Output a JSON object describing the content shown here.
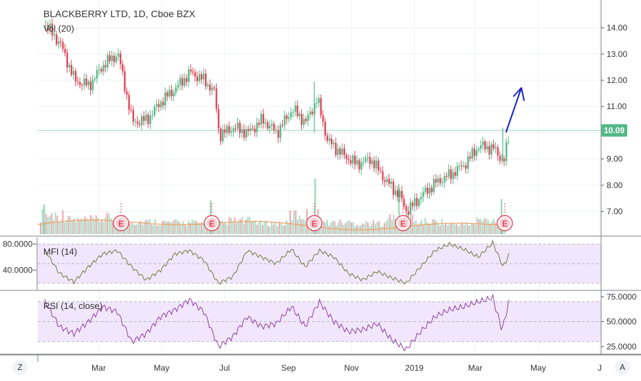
{
  "header": {
    "symbol_title": "BLACKBERRY LTD, 1D, Cboe BZX",
    "volume_label": "Vol (20)"
  },
  "price_pane": {
    "y_ticks": [
      "14.00",
      "13.00",
      "12.00",
      "11.00",
      "10.00",
      "9.00",
      "8.00",
      "7.00"
    ],
    "last_price": "10.09",
    "earnings_marker_label": "E"
  },
  "mfi_pane": {
    "label": "MFI (14)",
    "y_ticks": [
      "80.0000",
      "40.0000"
    ]
  },
  "rsi_pane": {
    "label": "RSI (14, close)",
    "y_ticks": [
      "75.0000",
      "50.0000",
      "25.0000"
    ]
  },
  "time_axis": {
    "labels": [
      "Mar",
      "May",
      "Jul",
      "Sep",
      "Nov",
      "2019",
      "Mar",
      "May",
      "J"
    ]
  },
  "toolbar": {
    "left_button": "Z",
    "right_button": "A"
  },
  "colors": {
    "up": "#53b987",
    "down": "#e0465a",
    "arrow": "#1520c8",
    "mfi_line": "#6b7b3a",
    "rsi_line": "#8e3ea0",
    "band_fill": "#f1e6fb",
    "price_line": "#53b987"
  },
  "chart_data": [
    {
      "type": "line",
      "title": "BLACKBERRY LTD, 1D, Cboe BZX",
      "series": [
        {
          "name": "",
          "x": [
            "2018-01-08",
            "2018-01-22",
            "2018-02-05",
            "2018-02-19",
            "2018-03-05",
            "2018-03-19",
            "2018-04-02",
            "2018-04-16",
            "2018-04-30",
            "2018-05-14",
            "2018-05-28",
            "2018-06-11",
            "2018-06-21",
            "2018-06-25",
            "2018-07-09",
            "2018-07-23",
            "2018-08-06",
            "2018-08-20",
            "2018-09-04",
            "2018-09-17",
            "2018-09-28",
            "2018-10-08",
            "2018-10-22",
            "2018-11-05",
            "2018-11-19",
            "2018-12-03",
            "2018-12-17",
            "2018-12-24",
            "2019-01-07",
            "2019-01-21",
            "2019-02-04",
            "2019-02-18",
            "2019-03-04",
            "2019-03-18",
            "2019-03-28",
            "2019-04-03"
          ],
          "values": [
            14.1,
            13.4,
            12.0,
            11.8,
            12.6,
            13.0,
            10.4,
            10.5,
            11.2,
            11.7,
            12.3,
            12.0,
            11.5,
            9.9,
            10.2,
            10.0,
            10.5,
            10.0,
            10.9,
            10.4,
            11.3,
            9.7,
            9.2,
            8.8,
            9.0,
            8.2,
            7.6,
            7.0,
            7.6,
            8.1,
            8.4,
            8.8,
            9.5,
            9.4,
            8.9,
            10.09
          ]
        }
      ],
      "ylim": [
        6.4,
        14.8
      ],
      "y_ticks": [
        7,
        8,
        9,
        10,
        11,
        12,
        13,
        14
      ],
      "annotations": [
        "10.09",
        "E",
        "E",
        "E",
        "E",
        "E"
      ]
    },
    {
      "type": "bar",
      "title": "Vol (20)",
      "x": [
        "2018-01",
        "2018-02",
        "2018-03",
        "2018-04",
        "2018-05",
        "2018-06",
        "2018-07",
        "2018-08",
        "2018-09",
        "2018-10",
        "2018-11",
        "2018-12",
        "2019-01",
        "2019-02",
        "2019-03",
        "2019-04"
      ],
      "values": [
        0.9,
        0.6,
        0.7,
        0.5,
        0.45,
        0.4,
        0.55,
        0.4,
        0.9,
        0.45,
        0.4,
        0.7,
        0.5,
        0.35,
        0.6,
        0.95
      ]
    },
    {
      "type": "line",
      "title": "MFI (14)",
      "series": [
        {
          "name": "MFI (14)",
          "x": [
            "2018-01-08",
            "2018-01-22",
            "2018-02-05",
            "2018-02-19",
            "2018-03-05",
            "2018-03-19",
            "2018-04-02",
            "2018-04-16",
            "2018-04-30",
            "2018-05-14",
            "2018-05-28",
            "2018-06-11",
            "2018-06-25",
            "2018-07-09",
            "2018-07-23",
            "2018-08-06",
            "2018-08-20",
            "2018-09-04",
            "2018-09-17",
            "2018-10-01",
            "2018-10-15",
            "2018-10-29",
            "2018-11-12",
            "2018-11-26",
            "2018-12-10",
            "2018-12-24",
            "2019-01-07",
            "2019-01-21",
            "2019-02-04",
            "2019-02-18",
            "2019-03-04",
            "2019-03-18",
            "2019-03-28",
            "2019-04-03"
          ],
          "values": [
            70,
            35,
            22,
            45,
            65,
            70,
            45,
            25,
            40,
            65,
            70,
            55,
            20,
            30,
            70,
            60,
            50,
            72,
            45,
            70,
            60,
            35,
            25,
            38,
            28,
            20,
            45,
            70,
            80,
            72,
            60,
            82,
            45,
            65
          ]
        }
      ],
      "y_ticks": [
        40,
        80
      ],
      "ylim": [
        10,
        90
      ]
    },
    {
      "type": "line",
      "title": "RSI (14, close)",
      "series": [
        {
          "name": "RSI (14, close)",
          "x": [
            "2018-01-08",
            "2018-01-22",
            "2018-02-05",
            "2018-02-19",
            "2018-03-05",
            "2018-03-19",
            "2018-04-02",
            "2018-04-16",
            "2018-04-30",
            "2018-05-14",
            "2018-05-28",
            "2018-06-11",
            "2018-06-25",
            "2018-07-09",
            "2018-07-23",
            "2018-08-06",
            "2018-08-20",
            "2018-09-04",
            "2018-09-17",
            "2018-10-01",
            "2018-10-15",
            "2018-10-29",
            "2018-11-12",
            "2018-11-26",
            "2018-12-10",
            "2018-12-24",
            "2019-01-07",
            "2019-01-21",
            "2019-02-04",
            "2019-02-18",
            "2019-03-04",
            "2019-03-18",
            "2019-03-26",
            "2019-03-28",
            "2019-04-03"
          ],
          "values": [
            70,
            45,
            38,
            50,
            65,
            60,
            30,
            38,
            55,
            62,
            72,
            60,
            25,
            35,
            55,
            45,
            48,
            65,
            45,
            70,
            50,
            40,
            42,
            48,
            32,
            22,
            40,
            55,
            62,
            65,
            70,
            74,
            45,
            45,
            72
          ]
        }
      ],
      "y_ticks": [
        25,
        50,
        75
      ],
      "ylim": [
        18,
        80
      ]
    }
  ]
}
